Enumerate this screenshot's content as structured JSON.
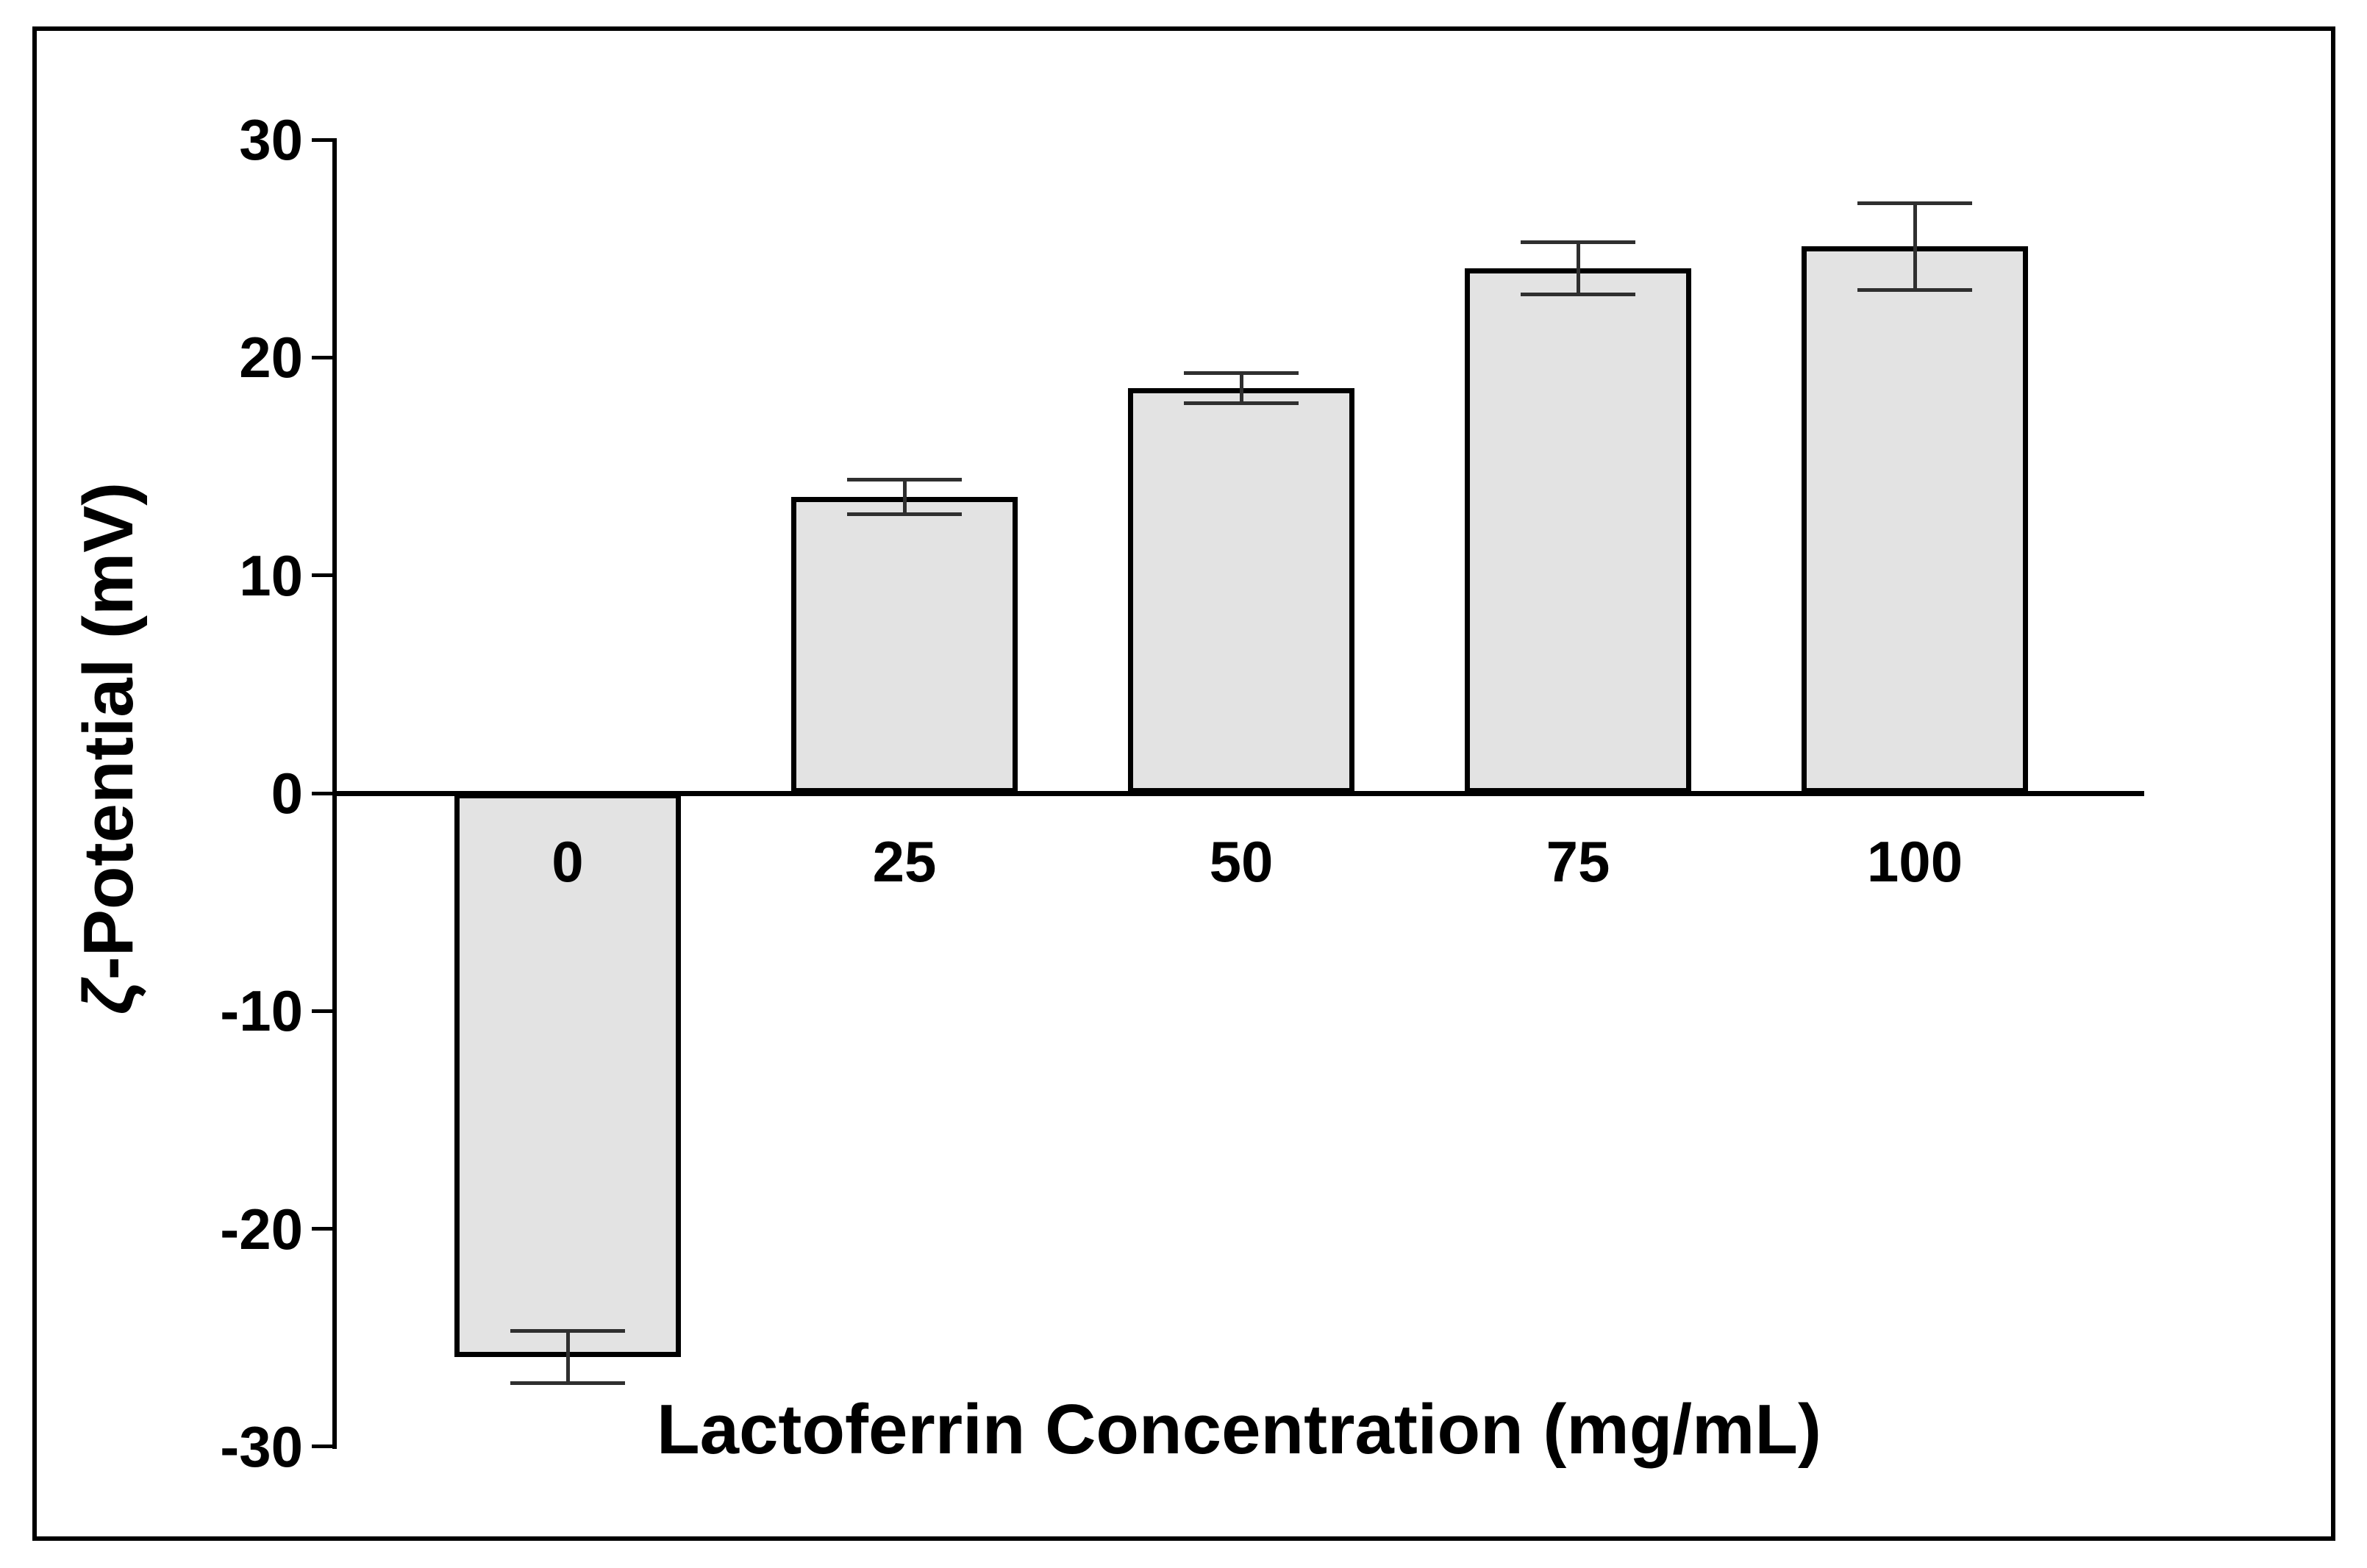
{
  "figure": {
    "background": "#ffffff",
    "frame_color": "#000000"
  },
  "chart_data": {
    "type": "bar",
    "title": "",
    "xlabel": "Lactoferrin Concentration (mg/mL)",
    "ylabel": "ζ-Potential (mV)",
    "ylabel_parts": {
      "zeta": "ζ",
      "rest": "-Potential (mV)"
    },
    "categories": [
      "0",
      "25",
      "50",
      "75",
      "100"
    ],
    "values": [
      -25.9,
      13.6,
      18.6,
      24.1,
      25.1
    ],
    "errors": [
      1.2,
      0.8,
      0.7,
      1.2,
      2.0
    ],
    "error_style": "symmetric, capped",
    "y_ticks": [
      30,
      20,
      10,
      0,
      -10,
      -20,
      -30
    ],
    "y_tick_labels": [
      "30",
      "20",
      "10",
      "0",
      "-10",
      "-20",
      "-30"
    ],
    "ylim": [
      -30,
      30
    ],
    "grid": false,
    "legend_position": "none",
    "bar_fill": "#e3e3e3",
    "bar_border": "#000000",
    "error_color": "#2f2f2f",
    "axis_color": "#000000",
    "text_color": "#000000"
  }
}
